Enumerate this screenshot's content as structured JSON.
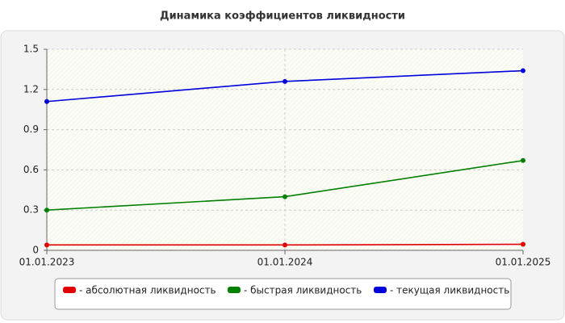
{
  "chart_data": {
    "type": "line",
    "title": "Динамика коэффициентов ликвидности",
    "categories": [
      "01.01.2023",
      "01.01.2024",
      "01.01.2025"
    ],
    "series": [
      {
        "name": "- абсолютная ликвидность",
        "color": "#e00000",
        "values": [
          0.04,
          0.04,
          0.045
        ]
      },
      {
        "name": "- быстрая ликвидность",
        "color": "#008000",
        "values": [
          0.3,
          0.4,
          0.67
        ]
      },
      {
        "name": "- текущая ликвидность",
        "color": "#0000dd",
        "values": [
          1.11,
          1.26,
          1.34
        ]
      }
    ],
    "ylim": [
      0,
      1.5
    ],
    "yticks": [
      0,
      0.3,
      0.6,
      0.9,
      1.2,
      1.5
    ],
    "grid": true,
    "legend": "bottom"
  }
}
